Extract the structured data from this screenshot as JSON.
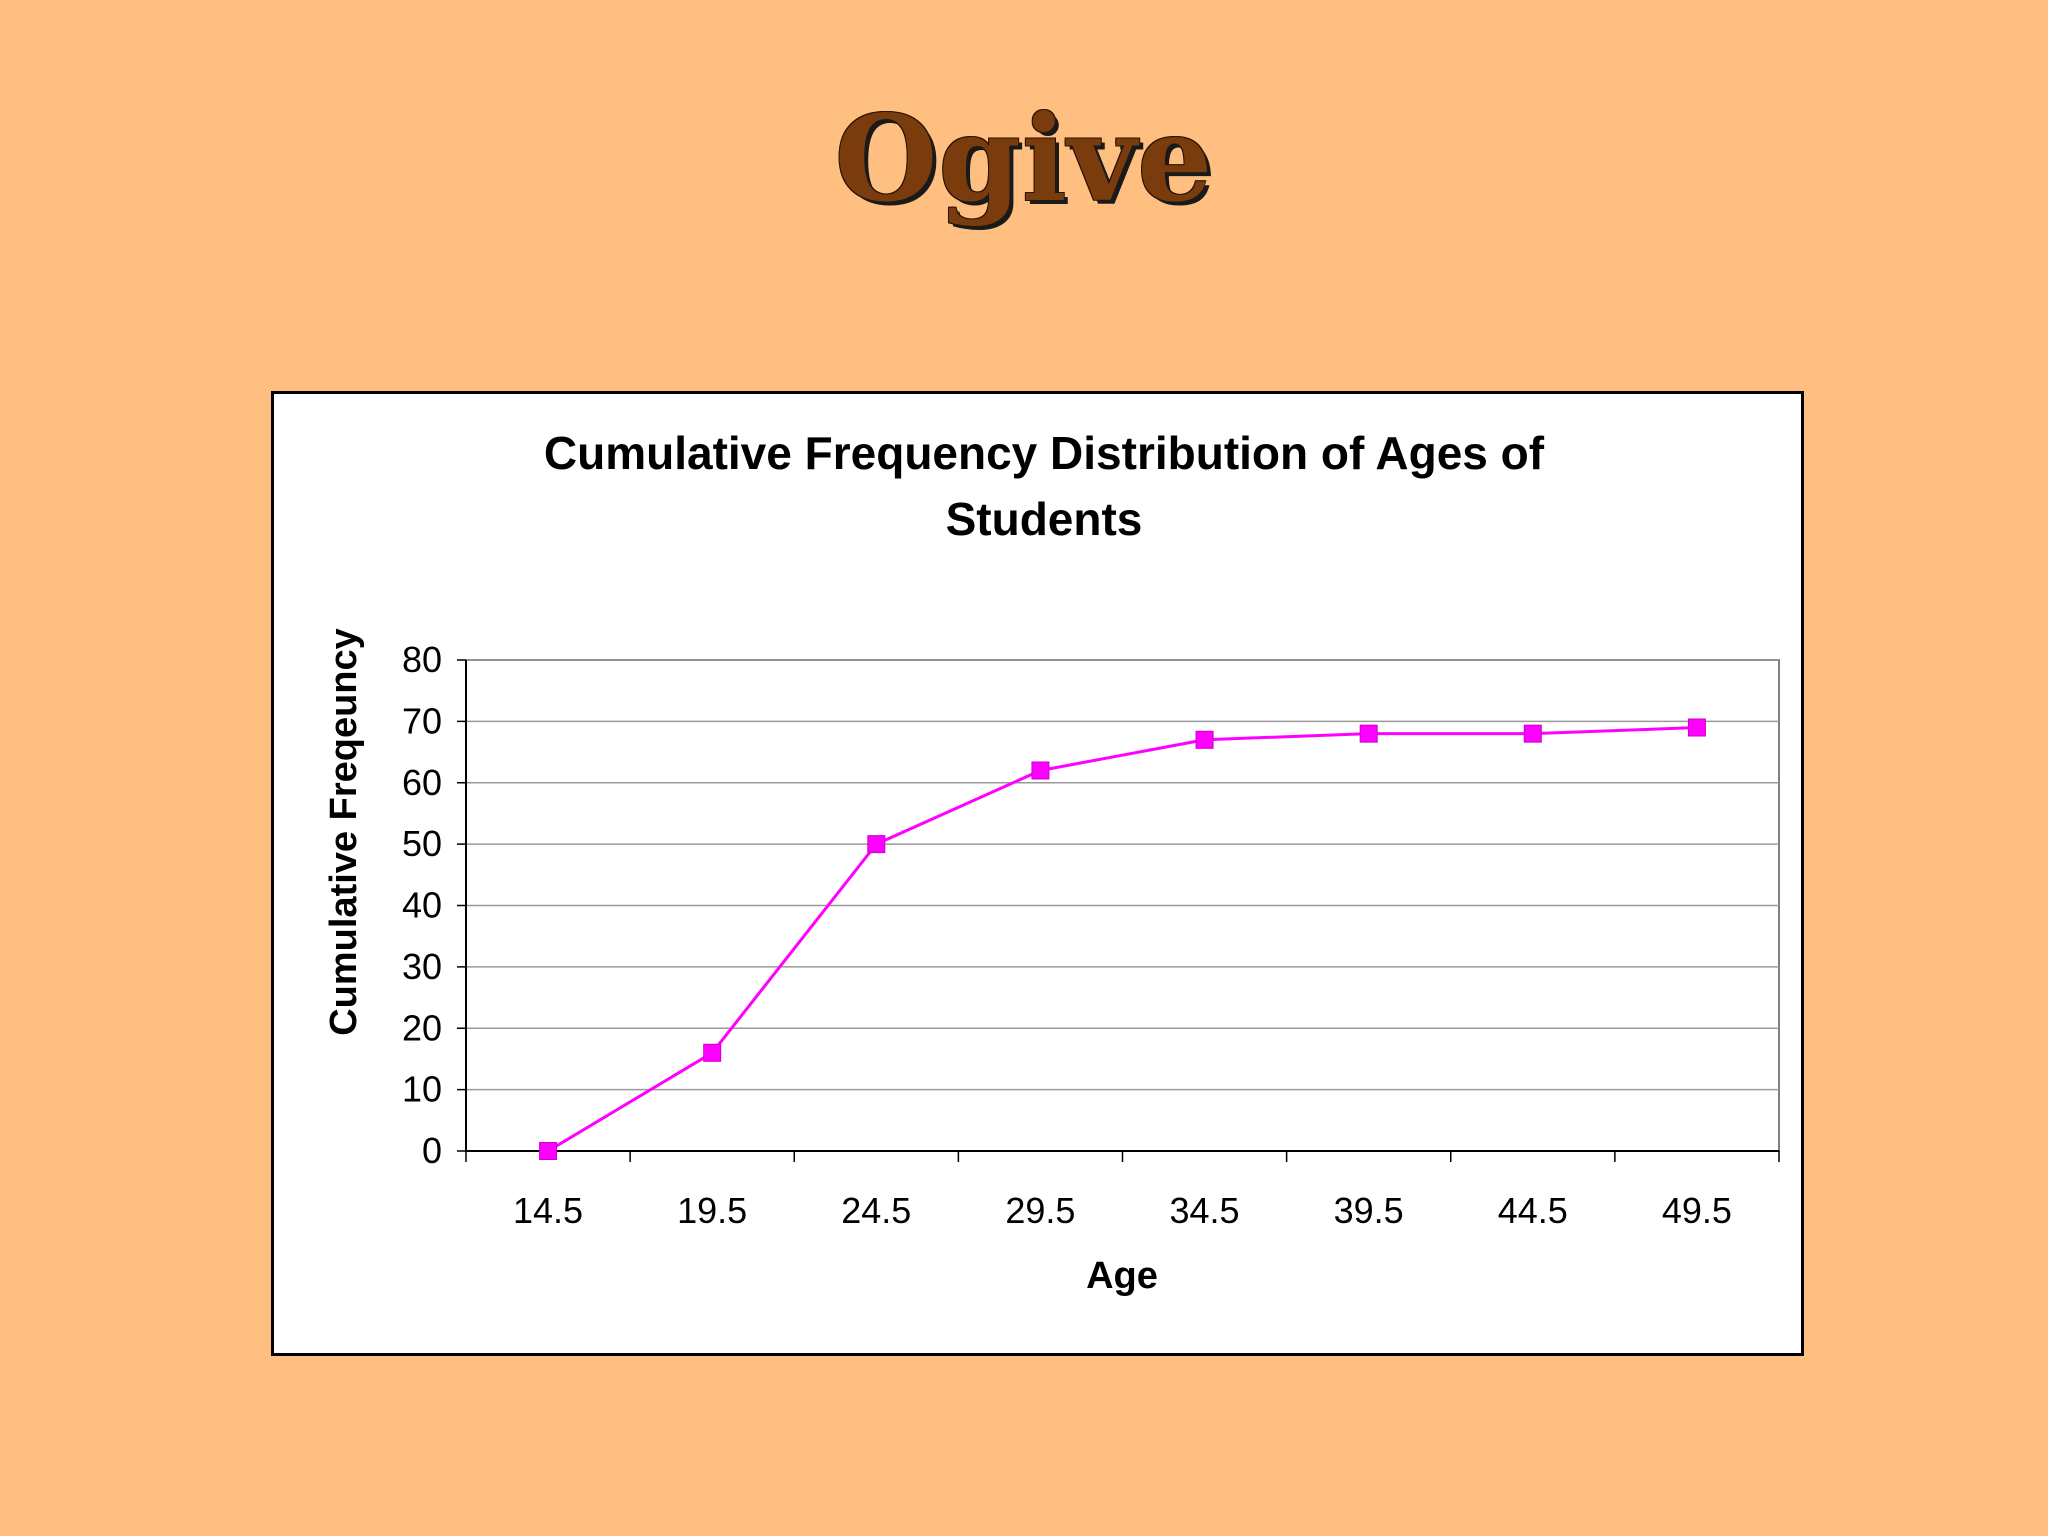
{
  "slide": {
    "title": "Ogive"
  },
  "colors": {
    "background": "#FFBF80",
    "title": "#7A3C0C",
    "series": "#FF00FF",
    "grid": "#9A9A9A"
  },
  "chart_data": {
    "type": "line",
    "title_lines": [
      "Cumulative Frequency Distribution of Ages of",
      "Students"
    ],
    "xlabel": "Age",
    "ylabel": "Cumulative Freqeuncy",
    "categories": [
      "14.5",
      "19.5",
      "24.5",
      "29.5",
      "34.5",
      "39.5",
      "44.5",
      "49.5"
    ],
    "series": [
      {
        "name": "Cumulative Frequency",
        "values": [
          0,
          16,
          50,
          62,
          67,
          68,
          68,
          69
        ]
      }
    ],
    "ylim": [
      0,
      80
    ],
    "yticks": [
      0,
      10,
      20,
      30,
      40,
      50,
      60,
      70,
      80
    ],
    "grid": true,
    "legend": "none",
    "marker": "square"
  }
}
